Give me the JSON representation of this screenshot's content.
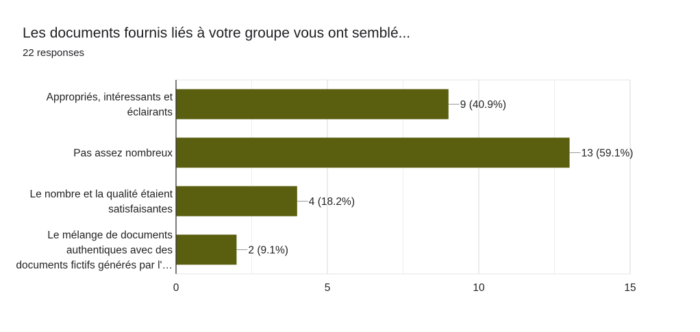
{
  "chart_data": {
    "type": "bar",
    "orientation": "horizontal",
    "title": "Les documents fournis liés à votre groupe vous ont semblé...",
    "subtitle": "22 responses",
    "categories": [
      [
        "Appropriés, intéressants et",
        "éclairants"
      ],
      [
        "Pas assez nombreux"
      ],
      [
        "Le nombre et la qualité étaient",
        "satisfaisantes"
      ],
      [
        "Le mélange de documents",
        "authentiques avec des",
        "documents fictifs générés par l'…"
      ]
    ],
    "values": [
      9,
      13,
      4,
      2
    ],
    "value_labels": [
      "9 (40.9%)",
      "13 (59.1%)",
      "4 (18.2%)",
      "2 (9.1%)"
    ],
    "xlim": [
      0,
      15
    ],
    "xticks": [
      0,
      5,
      10,
      15
    ],
    "xtick_labels": [
      "0",
      "5",
      "10",
      "15"
    ],
    "grid": true,
    "bar_color": "#5a5e0f"
  }
}
